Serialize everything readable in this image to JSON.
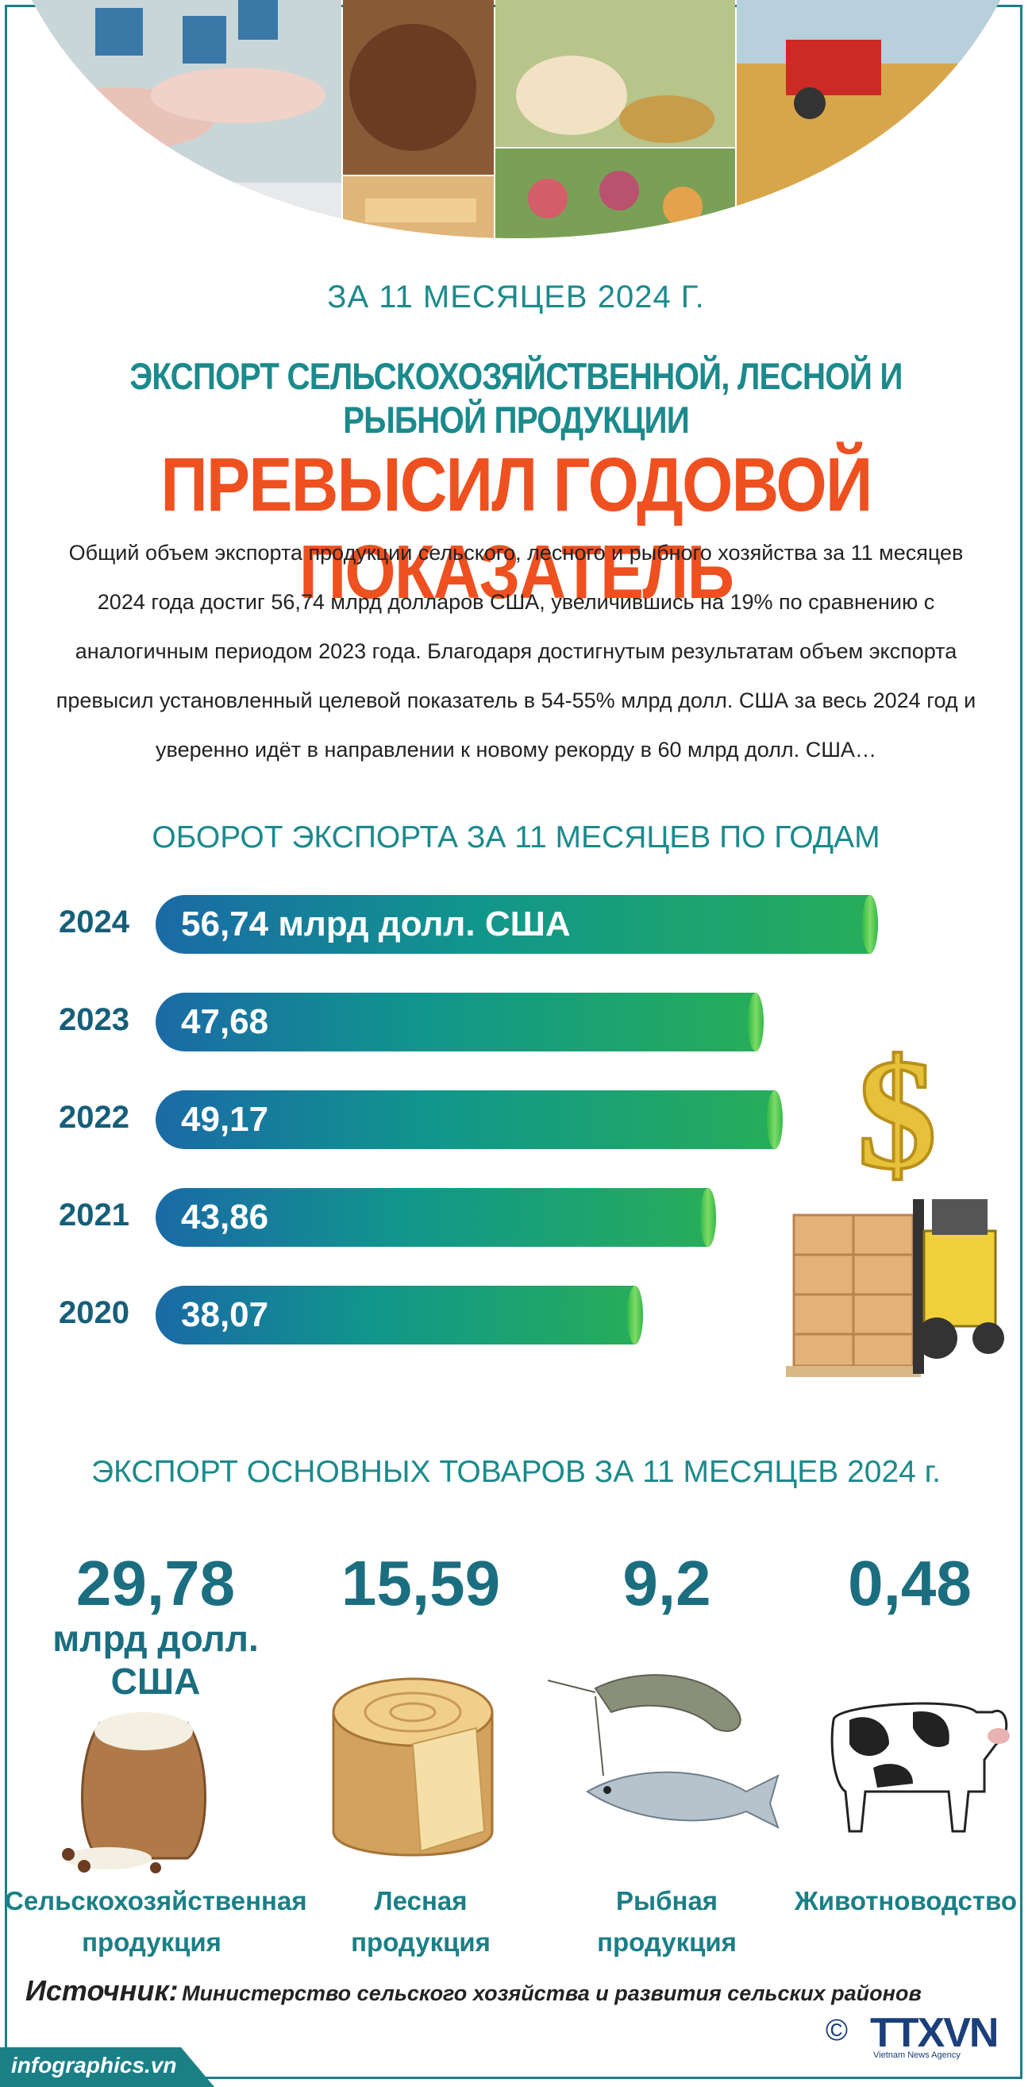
{
  "header": {
    "period": "ЗА 11 МЕСЯЦЕВ 2024 Г.",
    "title_line1": "ЭКСПОРТ СЕЛЬСКОХОЗЯЙСТВЕННОЙ, ЛЕСНОЙ И РЫБНОЙ ПРОДУКЦИИ",
    "title_line2": "ПРЕВЫСИЛ ГОДОВОЙ ПОКАЗАТЕЛЬ"
  },
  "intro": {
    "lines": [
      "Общий объем экспорта продукции сельского, лесного и рыбного  хозяйства за 11 месяцев",
      "2024 года достиг 56,74 млрд долларов США, увеличившись на 19% по сравнению с",
      "аналогичным периодом 2023 года. Благодаря достигнутым результатам объем экспорта",
      "превысил установленный целевой показатель в 54-55% млрд долл. США за весь 2024 год и",
      "уверенно идёт в направлении к новому рекорду в 60 млрд долл. США…"
    ]
  },
  "chart_data": {
    "type": "bar",
    "title": "ОБОРОТ ЭКСПОРТА ЗА 11 МЕСЯЦЕВ ПО ГОДАМ",
    "categories": [
      "2024",
      "2023",
      "2022",
      "2021",
      "2020"
    ],
    "values": [
      56.74,
      47.68,
      49.17,
      43.86,
      38.07
    ],
    "labels": [
      "56,74 млрд долл. США",
      "47,68",
      "49,17",
      "43,86",
      "38,07"
    ],
    "xlabel": "",
    "ylabel": ""
  },
  "products": {
    "title": "ЭКСПОРТ ОСНОВНЫХ ТОВАРОВ ЗА 11 МЕСЯЦЕВ 2024 г.",
    "unit": "млрд долл. США",
    "items": [
      {
        "value": "29,78",
        "name_line1": "Сельскохозяйственная",
        "name_line2": "продукция",
        "icon": "rice-sack-icon"
      },
      {
        "value": "15,59",
        "name_line1": "Лесная",
        "name_line2": "продукция",
        "icon": "wood-stump-icon"
      },
      {
        "value": "9,2",
        "name_line1": "Рыбная",
        "name_line2": "продукция",
        "icon": "shrimp-fish-icon"
      },
      {
        "value": "0,48",
        "name_line1": "Животноводство",
        "name_line2": "",
        "icon": "cow-icon"
      }
    ]
  },
  "source": {
    "label": "Источник:",
    "text": "Министерство сельского хозяйства и развития сельских районов"
  },
  "footer": {
    "site": "infographics.vn",
    "copyright": "©",
    "logo": "TTXVN",
    "agency": "Vietnam News Agency"
  },
  "colors": {
    "teal": "#1b8a8c",
    "orange": "#ef5020",
    "navy": "#175e78",
    "bar_start": "#1a6aa6",
    "bar_end": "#26ad5a"
  }
}
